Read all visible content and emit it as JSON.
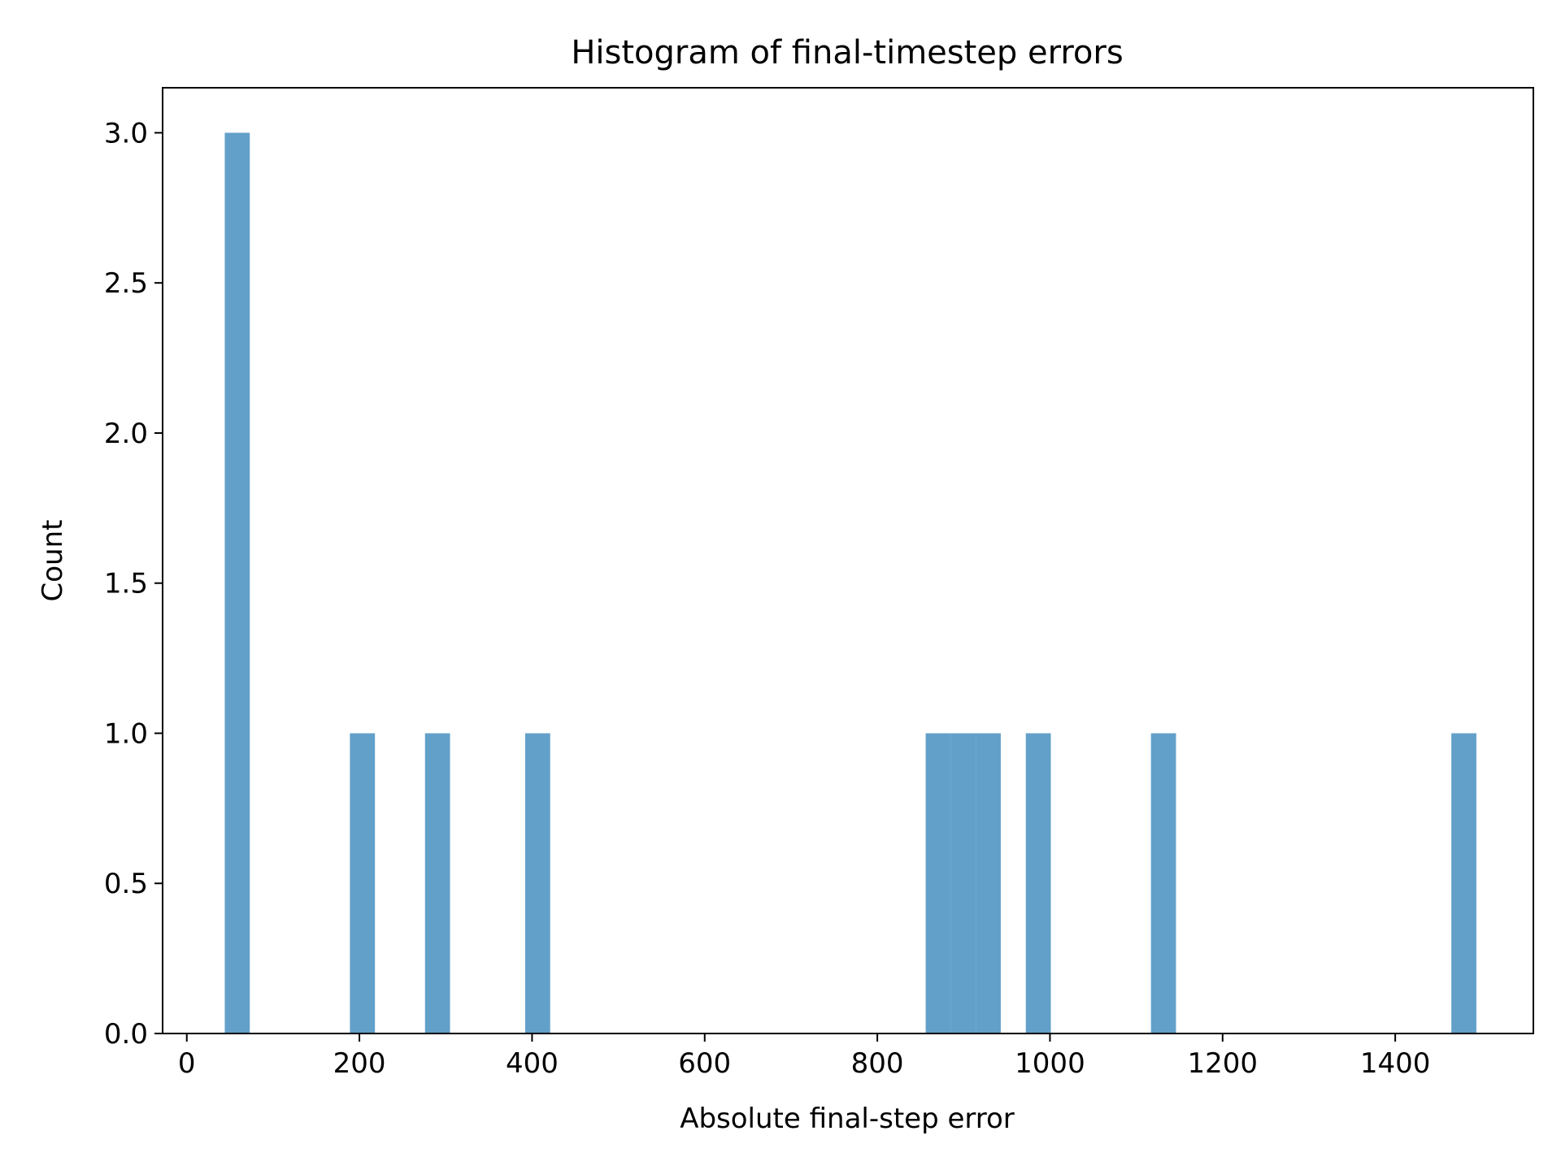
{
  "chart_data": {
    "type": "bar",
    "title": "Histogram of final-timestep errors",
    "xlabel": "Absolute final-step error",
    "ylabel": "Count",
    "xlim": [
      -28,
      1560
    ],
    "ylim": [
      0,
      3.15
    ],
    "xticks": [
      0,
      200,
      400,
      600,
      800,
      1000,
      1200,
      1400
    ],
    "yticks": [
      0.0,
      0.5,
      1.0,
      1.5,
      2.0,
      2.5,
      3.0
    ],
    "xtick_labels": [
      "0",
      "200",
      "400",
      "600",
      "800",
      "1000",
      "1200",
      "1400"
    ],
    "ytick_labels": [
      "0.0",
      "0.5",
      "1.0",
      "1.5",
      "2.0",
      "2.5",
      "3.0"
    ],
    "bar_color": "#1f77b4",
    "bar_opacity": 0.7,
    "grid": false,
    "bins": [
      {
        "x0": 44,
        "x1": 73,
        "count": 3
      },
      {
        "x0": 189,
        "x1": 218,
        "count": 1
      },
      {
        "x0": 276,
        "x1": 305,
        "count": 1
      },
      {
        "x0": 392,
        "x1": 421,
        "count": 1
      },
      {
        "x0": 856,
        "x1": 885,
        "count": 1
      },
      {
        "x0": 885,
        "x1": 914,
        "count": 1
      },
      {
        "x0": 914,
        "x1": 943,
        "count": 1
      },
      {
        "x0": 972,
        "x1": 1001,
        "count": 1
      },
      {
        "x0": 1117,
        "x1": 1146,
        "count": 1
      },
      {
        "x0": 1465,
        "x1": 1494,
        "count": 1
      }
    ]
  }
}
